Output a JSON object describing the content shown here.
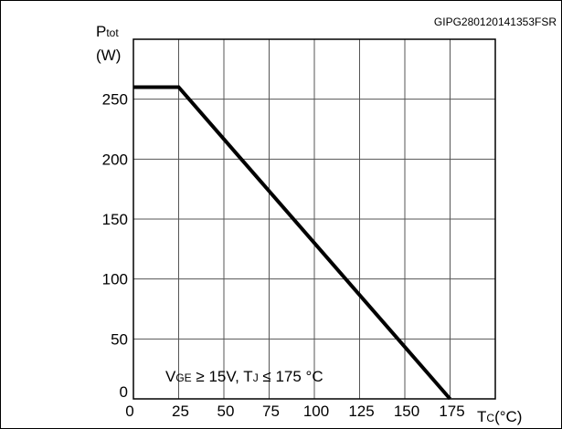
{
  "figure_id": "GIPG280120141353FSR",
  "chart_data": {
    "type": "line",
    "ylabel_main": "P",
    "ylabel_sub": "tot",
    "yunit": "(W)",
    "xlabel_main": "T",
    "xlabel_sub": "C",
    "xunit": "(°C)",
    "xlim": [
      0,
      200
    ],
    "ylim": [
      0,
      300
    ],
    "x_ticks": [
      0,
      25,
      50,
      75,
      100,
      125,
      150,
      175
    ],
    "y_ticks": [
      0,
      50,
      100,
      150,
      200,
      250
    ],
    "grid": true,
    "series": [
      {
        "x": [
          0,
          25,
          175
        ],
        "y": [
          260,
          260,
          0
        ]
      }
    ],
    "annotation": {
      "vge_sub": "GE",
      "vge_rest": " ≥ 15V, T",
      "tj_sub": "J",
      "tj_rest": " ≤ 175 °C"
    }
  }
}
